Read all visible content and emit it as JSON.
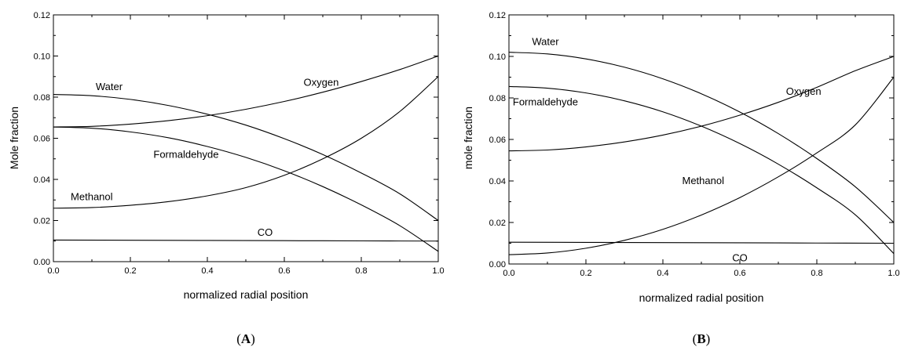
{
  "chart_data": [
    {
      "type": "line",
      "panel_label": "A",
      "xlabel": "normalized radial position",
      "ylabel": "Mole fraction",
      "xlim": [
        0.0,
        1.0
      ],
      "ylim": [
        0.0,
        0.12
      ],
      "xticks": [
        "0.0",
        "0.2",
        "0.4",
        "0.6",
        "0.8",
        "1.0"
      ],
      "yticks": [
        "0.00",
        "0.02",
        "0.04",
        "0.06",
        "0.08",
        "0.10",
        "0.12"
      ],
      "grid": false,
      "series": [
        {
          "name": "Water",
          "x": [
            0,
            0.1,
            0.2,
            0.3,
            0.4,
            0.5,
            0.6,
            0.7,
            0.8,
            0.9,
            1.0
          ],
          "y": [
            0.0813,
            0.0807,
            0.0789,
            0.0759,
            0.0717,
            0.0664,
            0.0598,
            0.0521,
            0.0431,
            0.033,
            0.02
          ]
        },
        {
          "name": "Oxygen",
          "x": [
            0,
            0.1,
            0.2,
            0.3,
            0.4,
            0.5,
            0.6,
            0.7,
            0.8,
            0.9,
            1.0
          ],
          "y": [
            0.0655,
            0.0658,
            0.0669,
            0.0686,
            0.071,
            0.0741,
            0.0779,
            0.0824,
            0.0876,
            0.0934,
            0.1
          ]
        },
        {
          "name": "Formaldehyde",
          "x": [
            0,
            0.1,
            0.2,
            0.3,
            0.4,
            0.5,
            0.6,
            0.7,
            0.8,
            0.9,
            1.0
          ],
          "y": [
            0.0655,
            0.0649,
            0.0631,
            0.0602,
            0.056,
            0.0507,
            0.0442,
            0.0365,
            0.0276,
            0.0175,
            0.005
          ]
        },
        {
          "name": "Methanol",
          "x": [
            0,
            0.1,
            0.2,
            0.3,
            0.4,
            0.5,
            0.6,
            0.7,
            0.8,
            0.9,
            1.0
          ],
          "y": [
            0.026,
            0.0263,
            0.0274,
            0.0292,
            0.032,
            0.036,
            0.042,
            0.05,
            0.06,
            0.073,
            0.09
          ]
        },
        {
          "name": "CO",
          "x": [
            0,
            0.2,
            0.4,
            0.6,
            0.8,
            1.0
          ],
          "y": [
            0.0105,
            0.0104,
            0.0103,
            0.0102,
            0.0101,
            0.01
          ]
        }
      ],
      "annotations": [
        {
          "text": "Water",
          "x": 0.11,
          "y": 0.0835
        },
        {
          "text": "Oxygen",
          "x": 0.65,
          "y": 0.0855
        },
        {
          "text": "Formaldehyde",
          "x": 0.26,
          "y": 0.0505
        },
        {
          "text": "Methanol",
          "x": 0.045,
          "y": 0.03
        },
        {
          "text": "CO",
          "x": 0.53,
          "y": 0.0125
        }
      ]
    },
    {
      "type": "line",
      "panel_label": "B",
      "xlabel": "normalized radial position",
      "ylabel": "mole fraction",
      "xlim": [
        0.0,
        1.0
      ],
      "ylim": [
        0.0,
        0.12
      ],
      "xticks": [
        "0.0",
        "0.2",
        "0.4",
        "0.6",
        "0.8",
        "1.0"
      ],
      "yticks": [
        "0.00",
        "0.02",
        "0.04",
        "0.06",
        "0.08",
        "0.10",
        "0.12"
      ],
      "grid": false,
      "series": [
        {
          "name": "Water",
          "x": [
            0,
            0.1,
            0.2,
            0.3,
            0.4,
            0.5,
            0.6,
            0.7,
            0.8,
            0.9,
            1.0
          ],
          "y": [
            0.102,
            0.1012,
            0.0988,
            0.0948,
            0.0892,
            0.082,
            0.0732,
            0.0628,
            0.0508,
            0.0372,
            0.02
          ]
        },
        {
          "name": "Formaldehyde",
          "x": [
            0,
            0.1,
            0.2,
            0.3,
            0.4,
            0.5,
            0.6,
            0.7,
            0.8,
            0.9,
            1.0
          ],
          "y": [
            0.0855,
            0.0847,
            0.0824,
            0.0786,
            0.0733,
            0.0664,
            0.058,
            0.0481,
            0.0367,
            0.0237,
            0.005
          ]
        },
        {
          "name": "Oxygen",
          "x": [
            0,
            0.1,
            0.2,
            0.3,
            0.4,
            0.5,
            0.6,
            0.7,
            0.8,
            0.9,
            1.0
          ],
          "y": [
            0.0545,
            0.0549,
            0.0564,
            0.0588,
            0.0621,
            0.0664,
            0.0717,
            0.0779,
            0.0851,
            0.0931,
            0.1
          ]
        },
        {
          "name": "Methanol",
          "x": [
            0,
            0.1,
            0.2,
            0.3,
            0.4,
            0.5,
            0.6,
            0.7,
            0.8,
            0.9,
            1.0
          ],
          "y": [
            0.0045,
            0.0053,
            0.0076,
            0.0114,
            0.0167,
            0.0236,
            0.032,
            0.042,
            0.0535,
            0.067,
            0.09
          ]
        },
        {
          "name": "CO",
          "x": [
            0,
            0.2,
            0.4,
            0.6,
            0.8,
            1.0
          ],
          "y": [
            0.0105,
            0.0104,
            0.0103,
            0.0102,
            0.0101,
            0.01
          ]
        }
      ],
      "annotations": [
        {
          "text": "Water",
          "x": 0.06,
          "y": 0.1055
        },
        {
          "text": "Formaldehyde",
          "x": 0.01,
          "y": 0.0765
        },
        {
          "text": "Oxygen",
          "x": 0.72,
          "y": 0.0815
        },
        {
          "text": "Methanol",
          "x": 0.45,
          "y": 0.0385
        },
        {
          "text": "CO",
          "x": 0.58,
          "y": 0.0013
        }
      ]
    }
  ]
}
